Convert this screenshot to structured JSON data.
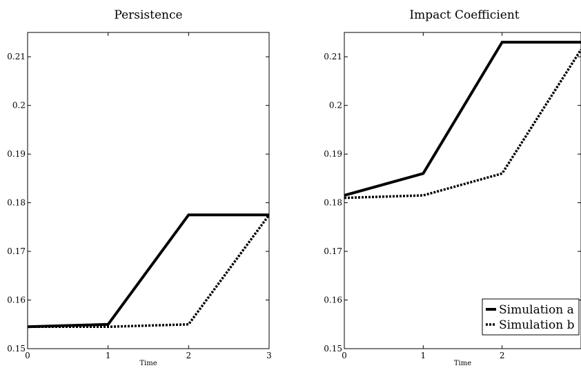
{
  "chart_data": [
    {
      "type": "line",
      "title": "Persistence",
      "xlabel": "Time",
      "ylabel": "",
      "xlim": [
        0,
        3
      ],
      "ylim": [
        0.15,
        0.215
      ],
      "x_ticks": [
        "0",
        "1",
        "2",
        "3"
      ],
      "y_ticks": [
        "0.15",
        "0.16",
        "0.17",
        "0.18",
        "0.19",
        "0.2",
        "0.21"
      ],
      "grid": false,
      "series": [
        {
          "name": "Simulation a",
          "style": "solid",
          "x": [
            0,
            1,
            2,
            3
          ],
          "y": [
            0.1545,
            0.155,
            0.1775,
            0.1775
          ]
        },
        {
          "name": "Simulation b",
          "style": "dotted",
          "x": [
            0,
            1,
            2,
            3
          ],
          "y": [
            0.1545,
            0.1545,
            0.155,
            0.1775
          ]
        }
      ]
    },
    {
      "type": "line",
      "title": "Impact Coefficient",
      "xlabel": "Time",
      "ylabel": "",
      "xlim": [
        0,
        3
      ],
      "ylim": [
        0.15,
        0.215
      ],
      "x_ticks": [
        "0",
        "1",
        "2"
      ],
      "y_ticks": [
        "0.15",
        "0.16",
        "0.17",
        "0.18",
        "0.19",
        "0.2",
        "0.21"
      ],
      "grid": false,
      "legend_position": "bottom-right",
      "series": [
        {
          "name": "Simulation a",
          "style": "solid",
          "x": [
            0,
            1,
            2,
            3
          ],
          "y": [
            0.1815,
            0.186,
            0.213,
            0.213
          ]
        },
        {
          "name": "Simulation b",
          "style": "dotted",
          "x": [
            0,
            1,
            2,
            3
          ],
          "y": [
            0.181,
            0.1815,
            0.186,
            0.2115
          ]
        }
      ]
    }
  ]
}
